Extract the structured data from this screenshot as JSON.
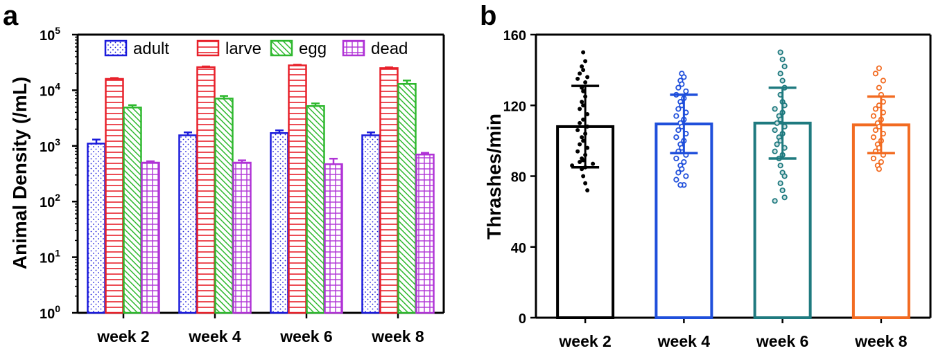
{
  "panels": {
    "a": "a",
    "b": "b"
  },
  "chart_data": [
    {
      "type": "bar",
      "title": "",
      "ylabel": "Animal Density (/mL)",
      "yscale": "log",
      "ylim": [
        1,
        100000
      ],
      "yticks": [
        {
          "base": "10",
          "exp": "0",
          "value": 1
        },
        {
          "base": "10",
          "exp": "1",
          "value": 10
        },
        {
          "base": "10",
          "exp": "2",
          "value": 100
        },
        {
          "base": "10",
          "exp": "3",
          "value": 1000
        },
        {
          "base": "10",
          "exp": "4",
          "value": 10000
        },
        {
          "base": "10",
          "exp": "5",
          "value": 100000
        }
      ],
      "categories": [
        "week 2",
        "week 4",
        "week 6",
        "week 8"
      ],
      "legend_position": "top",
      "series": [
        {
          "name": "adult",
          "color": "#1a1adb",
          "pattern": "dots",
          "values": [
            1100,
            1550,
            1700,
            1550
          ],
          "errors": [
            200,
            200,
            200,
            200
          ]
        },
        {
          "name": "larve",
          "color": "#e8202a",
          "pattern": "horizontal-lines",
          "values": [
            16000,
            26000,
            28000,
            25000
          ],
          "errors": [
            600,
            800,
            800,
            800
          ]
        },
        {
          "name": "egg",
          "color": "#2eb82e",
          "pattern": "diagonal-hatch",
          "values": [
            4900,
            7100,
            5200,
            13000
          ],
          "errors": [
            500,
            800,
            600,
            2000
          ]
        },
        {
          "name": "dead",
          "color": "#b033d6",
          "pattern": "grid",
          "values": [
            500,
            500,
            470,
            700
          ],
          "errors": [
            30,
            50,
            120,
            50
          ]
        }
      ]
    },
    {
      "type": "bar",
      "title": "",
      "ylabel": "Thrashes/min",
      "ylim": [
        0,
        160
      ],
      "yticks": [
        0,
        40,
        80,
        120,
        160
      ],
      "categories": [
        "week 2",
        "week 4",
        "week 6",
        "week 8"
      ],
      "series": [
        {
          "name": "",
          "colors": [
            "#000000",
            "#1f4fdb",
            "#1f7a7f",
            "#f26b21"
          ],
          "values": [
            108,
            109.5,
            110,
            109
          ],
          "sd": [
            23,
            16.5,
            20,
            16
          ],
          "points": [
            [
              150,
              145,
              142,
              140,
              138,
              136,
              135,
              133,
              130,
              128,
              125,
              122,
              120,
              118,
              115,
              112,
              110,
              108,
              106,
              104,
              102,
              100,
              98,
              96,
              94,
              92,
              90,
              89,
              88,
              87,
              86,
              85,
              84,
              80,
              76,
              72
            ],
            [
              138,
              136,
              134,
              132,
              130,
              128,
              126,
              124,
              122,
              120,
              118,
              116,
              114,
              112,
              110,
              108,
              106,
              104,
              102,
              100,
              98,
              96,
              94,
              92,
              90,
              88,
              86,
              84,
              82,
              80,
              78,
              75,
              75
            ],
            [
              150,
              146,
              142,
              138,
              134,
              130,
              126,
              122,
              120,
              118,
              116,
              114,
              112,
              110,
              108,
              106,
              104,
              102,
              100,
              98,
              96,
              94,
              92,
              90,
              86,
              82,
              80,
              76,
              72,
              68,
              66
            ],
            [
              141,
              138,
              134,
              130,
              126,
              122,
              120,
              118,
              116,
              114,
              112,
              110,
              108,
              106,
              104,
              102,
              100,
              98,
              96,
              94,
              92,
              90,
              88,
              86,
              84
            ]
          ]
        }
      ]
    }
  ]
}
